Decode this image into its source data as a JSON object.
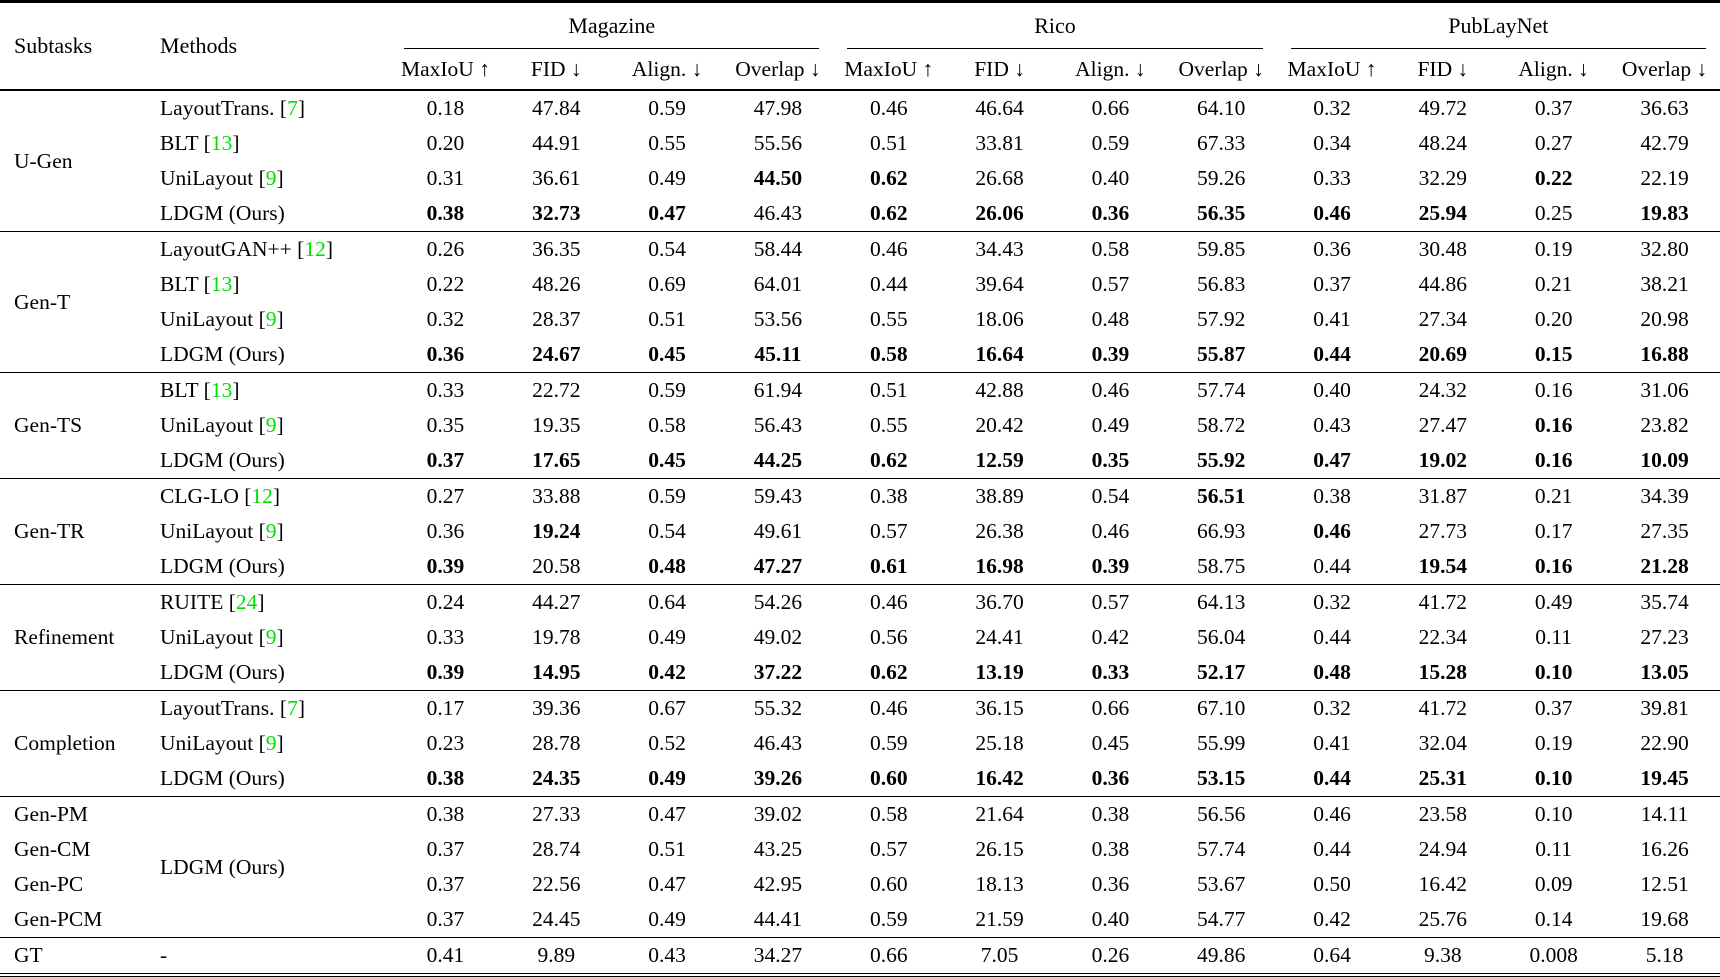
{
  "accent_green": "#00e000",
  "table": {
    "col_headers": {
      "subtasks": "Subtasks",
      "methods": "Methods",
      "datasets": [
        "Magazine",
        "Rico",
        "PubLayNet"
      ],
      "metrics": [
        "MaxIoU ↑",
        "FID ↓",
        "Align. ↓",
        "Overlap ↓"
      ]
    },
    "groups": [
      {
        "label": "U-Gen",
        "rows": [
          {
            "method": "LayoutTrans.",
            "ref": "7",
            "values": [
              "0.18",
              "47.84",
              "0.59",
              "47.98",
              "0.46",
              "46.64",
              "0.66",
              "64.10",
              "0.32",
              "49.72",
              "0.37",
              "36.63"
            ],
            "bold": []
          },
          {
            "method": "BLT",
            "ref": "13",
            "values": [
              "0.20",
              "44.91",
              "0.55",
              "55.56",
              "0.51",
              "33.81",
              "0.59",
              "67.33",
              "0.34",
              "48.24",
              "0.27",
              "42.79"
            ],
            "bold": []
          },
          {
            "method": "UniLayout",
            "ref": "9",
            "values": [
              "0.31",
              "36.61",
              "0.49",
              "44.50",
              "0.62",
              "26.68",
              "0.40",
              "59.26",
              "0.33",
              "32.29",
              "0.22",
              "22.19"
            ],
            "bold": [
              3,
              4,
              10
            ]
          },
          {
            "method": "LDGM (Ours)",
            "ref": null,
            "values": [
              "0.38",
              "32.73",
              "0.47",
              "46.43",
              "0.62",
              "26.06",
              "0.36",
              "56.35",
              "0.46",
              "25.94",
              "0.25",
              "19.83"
            ],
            "bold": [
              0,
              1,
              2,
              4,
              5,
              6,
              7,
              8,
              9,
              11
            ]
          }
        ]
      },
      {
        "label": "Gen-T",
        "rows": [
          {
            "method": "LayoutGAN++",
            "ref": "12",
            "values": [
              "0.26",
              "36.35",
              "0.54",
              "58.44",
              "0.46",
              "34.43",
              "0.58",
              "59.85",
              "0.36",
              "30.48",
              "0.19",
              "32.80"
            ],
            "bold": []
          },
          {
            "method": "BLT",
            "ref": "13",
            "values": [
              "0.22",
              "48.26",
              "0.69",
              "64.01",
              "0.44",
              "39.64",
              "0.57",
              "56.83",
              "0.37",
              "44.86",
              "0.21",
              "38.21"
            ],
            "bold": []
          },
          {
            "method": "UniLayout",
            "ref": "9",
            "values": [
              "0.32",
              "28.37",
              "0.51",
              "53.56",
              "0.55",
              "18.06",
              "0.48",
              "57.92",
              "0.41",
              "27.34",
              "0.20",
              "20.98"
            ],
            "bold": []
          },
          {
            "method": "LDGM (Ours)",
            "ref": null,
            "values": [
              "0.36",
              "24.67",
              "0.45",
              "45.11",
              "0.58",
              "16.64",
              "0.39",
              "55.87",
              "0.44",
              "20.69",
              "0.15",
              "16.88"
            ],
            "bold": [
              0,
              1,
              2,
              3,
              4,
              5,
              6,
              7,
              8,
              9,
              10,
              11
            ]
          }
        ]
      },
      {
        "label": "Gen-TS",
        "rows": [
          {
            "method": "BLT",
            "ref": "13",
            "values": [
              "0.33",
              "22.72",
              "0.59",
              "61.94",
              "0.51",
              "42.88",
              "0.46",
              "57.74",
              "0.40",
              "24.32",
              "0.16",
              "31.06"
            ],
            "bold": []
          },
          {
            "method": "UniLayout",
            "ref": "9",
            "values": [
              "0.35",
              "19.35",
              "0.58",
              "56.43",
              "0.55",
              "20.42",
              "0.49",
              "58.72",
              "0.43",
              "27.47",
              "0.16",
              "23.82"
            ],
            "bold": [
              10
            ]
          },
          {
            "method": "LDGM (Ours)",
            "ref": null,
            "values": [
              "0.37",
              "17.65",
              "0.45",
              "44.25",
              "0.62",
              "12.59",
              "0.35",
              "55.92",
              "0.47",
              "19.02",
              "0.16",
              "10.09"
            ],
            "bold": [
              0,
              1,
              2,
              3,
              4,
              5,
              6,
              7,
              8,
              9,
              10,
              11
            ]
          }
        ]
      },
      {
        "label": "Gen-TR",
        "rows": [
          {
            "method": "CLG-LO",
            "ref": "12",
            "values": [
              "0.27",
              "33.88",
              "0.59",
              "59.43",
              "0.38",
              "38.89",
              "0.54",
              "56.51",
              "0.38",
              "31.87",
              "0.21",
              "34.39"
            ],
            "bold": [
              7
            ]
          },
          {
            "method": "UniLayout",
            "ref": "9",
            "values": [
              "0.36",
              "19.24",
              "0.54",
              "49.61",
              "0.57",
              "26.38",
              "0.46",
              "66.93",
              "0.46",
              "27.73",
              "0.17",
              "27.35"
            ],
            "bold": [
              1,
              8
            ]
          },
          {
            "method": "LDGM (Ours)",
            "ref": null,
            "values": [
              "0.39",
              "20.58",
              "0.48",
              "47.27",
              "0.61",
              "16.98",
              "0.39",
              "58.75",
              "0.44",
              "19.54",
              "0.16",
              "21.28"
            ],
            "bold": [
              0,
              2,
              3,
              4,
              5,
              6,
              9,
              10,
              11
            ]
          }
        ]
      },
      {
        "label": "Refinement",
        "rows": [
          {
            "method": "RUITE",
            "ref": "24",
            "values": [
              "0.24",
              "44.27",
              "0.64",
              "54.26",
              "0.46",
              "36.70",
              "0.57",
              "64.13",
              "0.32",
              "41.72",
              "0.49",
              "35.74"
            ],
            "bold": []
          },
          {
            "method": "UniLayout",
            "ref": "9",
            "values": [
              "0.33",
              "19.78",
              "0.49",
              "49.02",
              "0.56",
              "24.41",
              "0.42",
              "56.04",
              "0.44",
              "22.34",
              "0.11",
              "27.23"
            ],
            "bold": []
          },
          {
            "method": "LDGM (Ours)",
            "ref": null,
            "values": [
              "0.39",
              "14.95",
              "0.42",
              "37.22",
              "0.62",
              "13.19",
              "0.33",
              "52.17",
              "0.48",
              "15.28",
              "0.10",
              "13.05"
            ],
            "bold": [
              0,
              1,
              2,
              3,
              4,
              5,
              6,
              7,
              8,
              9,
              10,
              11
            ]
          }
        ]
      },
      {
        "label": "Completion",
        "rows": [
          {
            "method": "LayoutTrans.",
            "ref": "7",
            "values": [
              "0.17",
              "39.36",
              "0.67",
              "55.32",
              "0.46",
              "36.15",
              "0.66",
              "67.10",
              "0.32",
              "41.72",
              "0.37",
              "39.81"
            ],
            "bold": []
          },
          {
            "method": "UniLayout",
            "ref": "9",
            "values": [
              "0.23",
              "28.78",
              "0.52",
              "46.43",
              "0.59",
              "25.18",
              "0.45",
              "55.99",
              "0.41",
              "32.04",
              "0.19",
              "22.90"
            ],
            "bold": []
          },
          {
            "method": "LDGM (Ours)",
            "ref": null,
            "values": [
              "0.38",
              "24.35",
              "0.49",
              "39.26",
              "0.60",
              "16.42",
              "0.36",
              "53.15",
              "0.44",
              "25.31",
              "0.10",
              "19.45"
            ],
            "bold": [
              0,
              1,
              2,
              3,
              4,
              5,
              6,
              7,
              8,
              9,
              10,
              11
            ]
          }
        ]
      },
      {
        "label": "",
        "method_span": "LDGM (Ours)",
        "rows": [
          {
            "subtask": "Gen-PM",
            "values": [
              "0.38",
              "27.33",
              "0.47",
              "39.02",
              "0.58",
              "21.64",
              "0.38",
              "56.56",
              "0.46",
              "23.58",
              "0.10",
              "14.11"
            ],
            "bold": []
          },
          {
            "subtask": "Gen-CM",
            "values": [
              "0.37",
              "28.74",
              "0.51",
              "43.25",
              "0.57",
              "26.15",
              "0.38",
              "57.74",
              "0.44",
              "24.94",
              "0.11",
              "16.26"
            ],
            "bold": []
          },
          {
            "subtask": "Gen-PC",
            "values": [
              "0.37",
              "22.56",
              "0.47",
              "42.95",
              "0.60",
              "18.13",
              "0.36",
              "53.67",
              "0.50",
              "16.42",
              "0.09",
              "12.51"
            ],
            "bold": []
          },
          {
            "subtask": "Gen-PCM",
            "values": [
              "0.37",
              "24.45",
              "0.49",
              "44.41",
              "0.59",
              "21.59",
              "0.40",
              "54.77",
              "0.42",
              "25.76",
              "0.14",
              "19.68"
            ],
            "bold": []
          }
        ]
      },
      {
        "label": "GT",
        "rows": [
          {
            "method": "-",
            "ref": null,
            "values": [
              "0.41",
              "9.89",
              "0.43",
              "34.27",
              "0.66",
              "7.05",
              "0.26",
              "49.86",
              "0.64",
              "9.38",
              "0.008",
              "5.18"
            ],
            "bold": []
          }
        ]
      }
    ]
  }
}
